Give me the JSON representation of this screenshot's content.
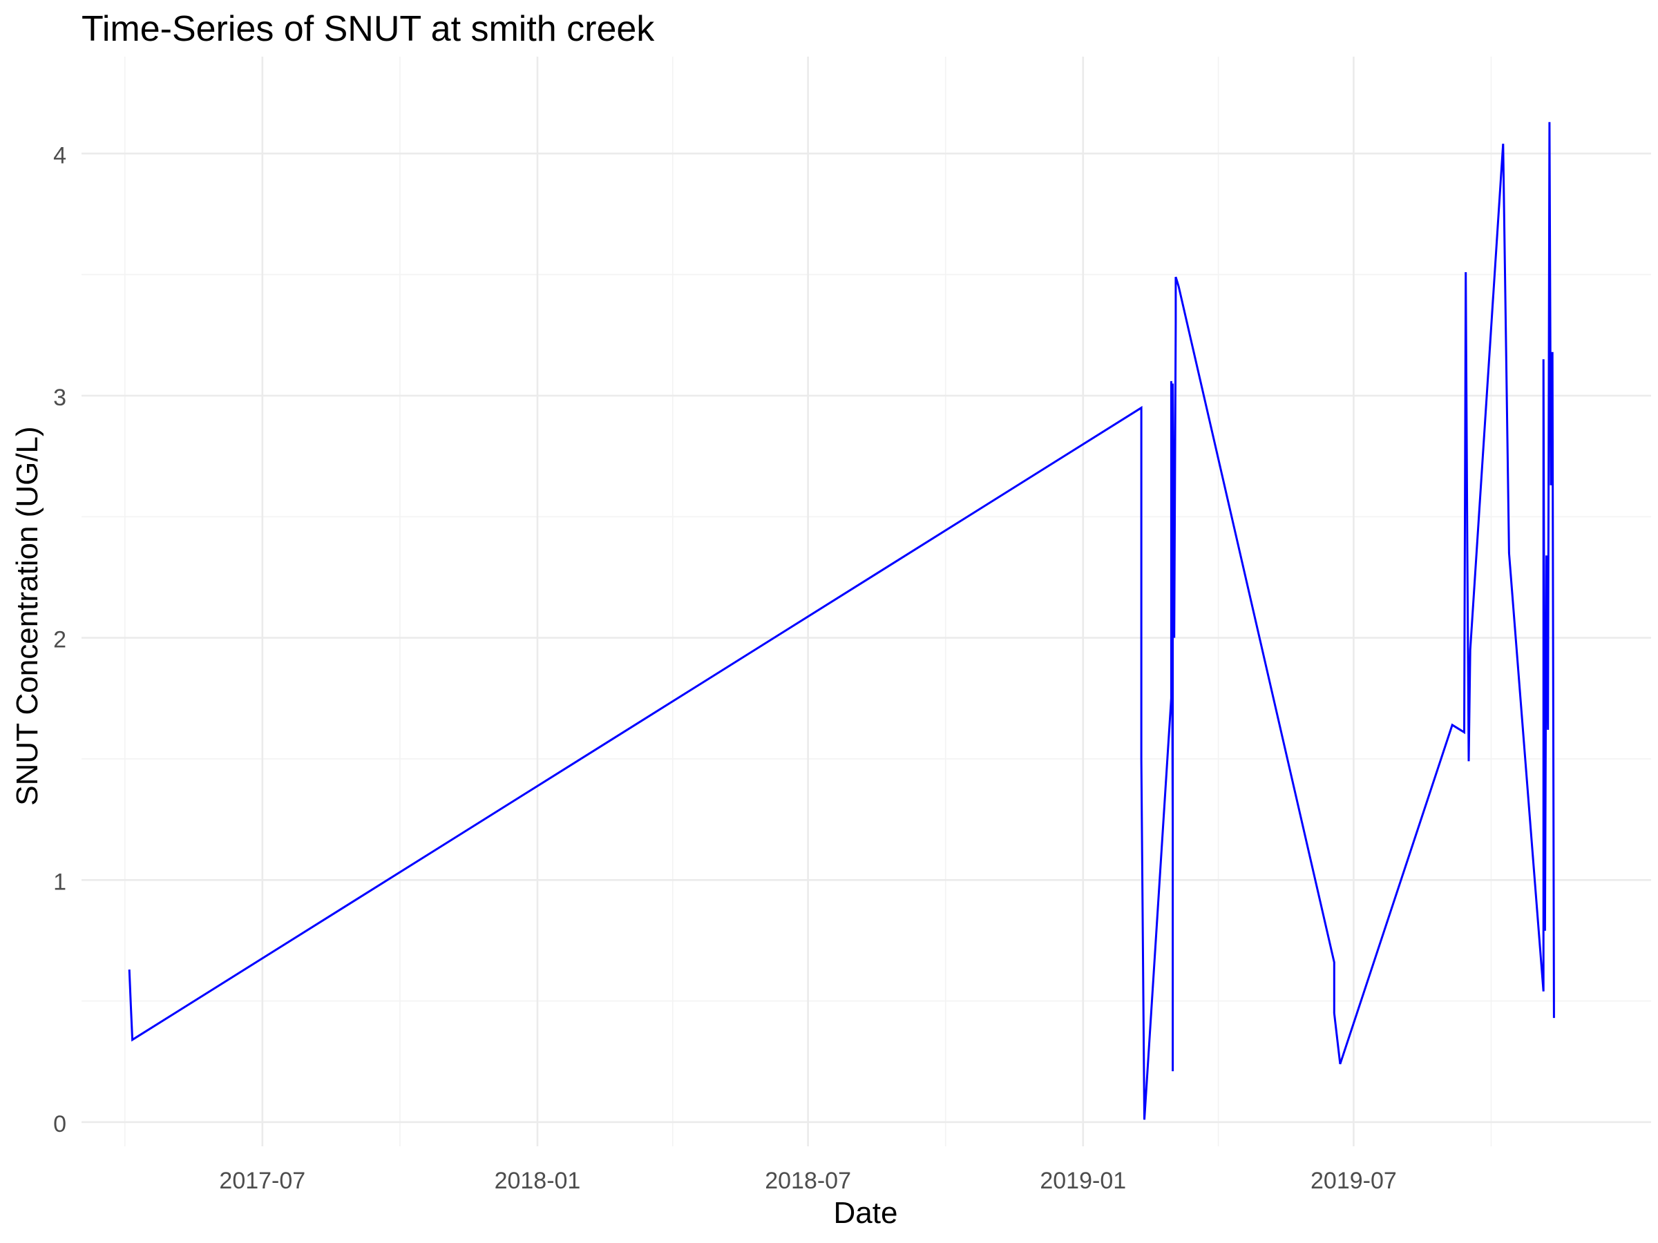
{
  "chart_data": {
    "type": "line",
    "title": "Time-Series of SNUT at smith creek",
    "xlabel": "Date",
    "ylabel": "SNUT Concentration (UG/L)",
    "x_ticks": [
      "2017-07",
      "2018-01",
      "2018-07",
      "2019-01",
      "2019-07"
    ],
    "y_ticks": [
      0,
      1,
      2,
      3,
      4
    ],
    "xlim": [
      "2017-03-02",
      "2020-01-16"
    ],
    "ylim": [
      -0.1,
      4.4
    ],
    "grid": true,
    "legend": "none",
    "series": [
      {
        "color": "#0000ff",
        "x": [
          "2017-04-03",
          "2017-04-04",
          "2017-04-05",
          "2019-02-09",
          "2019-02-09",
          "2019-02-11",
          "2019-03-01",
          "2019-03-01",
          "2019-03-02",
          "2019-03-02",
          "2019-03-02",
          "2019-03-03",
          "2019-03-04",
          "2019-03-04",
          "2019-03-05",
          "2019-03-06",
          "2019-06-18",
          "2019-06-18",
          "2019-06-22",
          "2019-09-05",
          "2019-09-13",
          "2019-09-14",
          "2019-09-15",
          "2019-09-16",
          "2019-09-17",
          "2019-10-09",
          "2019-10-13",
          "2019-11-05",
          "2019-11-05",
          "2019-11-06",
          "2019-11-07",
          "2019-11-08",
          "2019-11-09",
          "2019-11-10",
          "2019-11-11",
          "2019-11-12"
        ],
        "y": [
          0.63,
          0.48,
          0.34,
          2.95,
          1.5,
          0.01,
          1.75,
          3.06,
          1.2,
          0.21,
          3.05,
          2.0,
          3.3,
          3.49,
          3.47,
          3.45,
          0.66,
          0.45,
          0.24,
          1.64,
          1.61,
          3.51,
          2.4,
          1.49,
          1.95,
          4.04,
          2.35,
          0.54,
          3.15,
          0.79,
          2.34,
          1.62,
          4.13,
          2.63,
          3.18,
          0.43
        ]
      }
    ]
  }
}
